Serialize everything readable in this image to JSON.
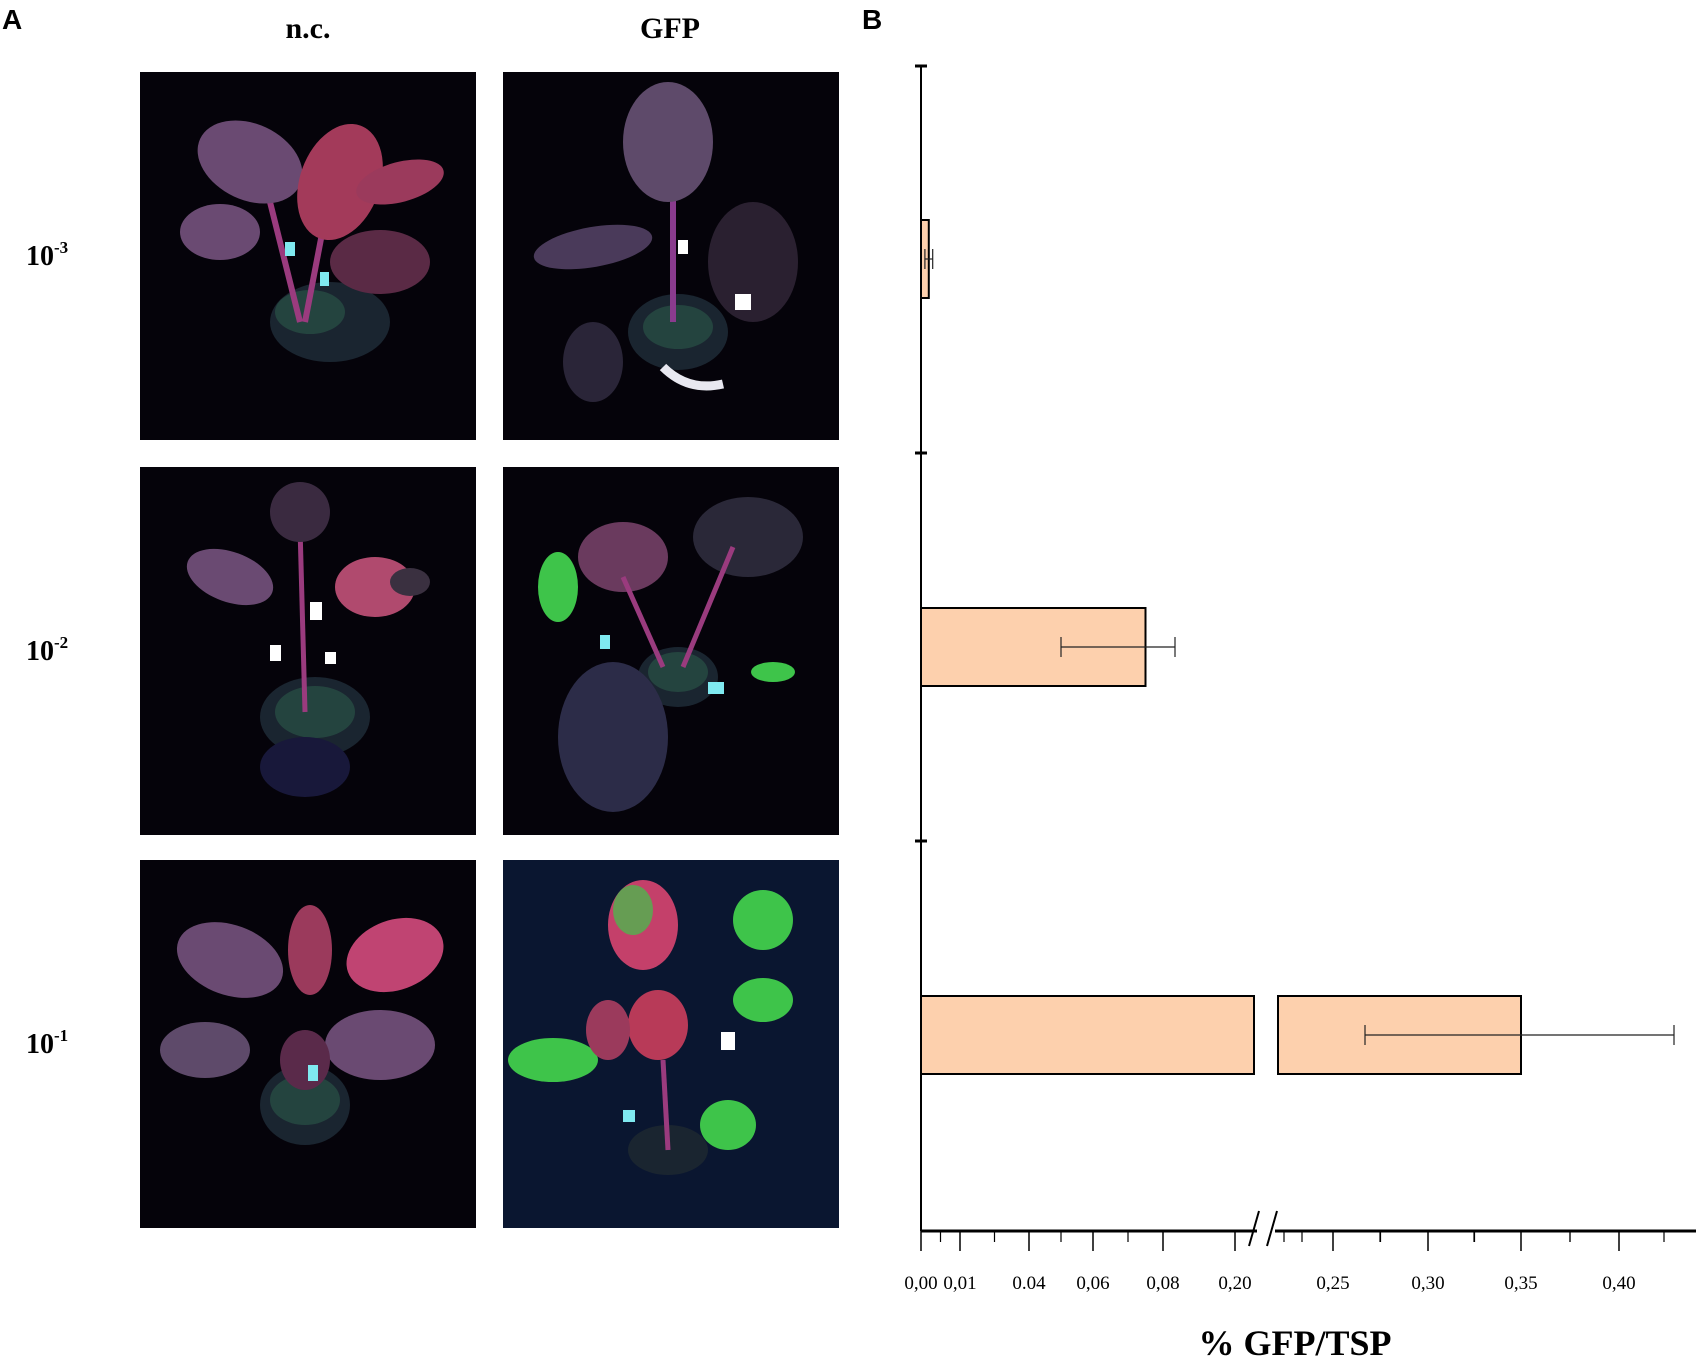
{
  "panel_a": {
    "letter": "A",
    "columns": [
      "n.c.",
      "GFP"
    ],
    "rows": [
      {
        "base": "10",
        "exp": "-3"
      },
      {
        "base": "10",
        "exp": "-2"
      },
      {
        "base": "10",
        "exp": "-1"
      }
    ]
  },
  "panel_b": {
    "letter": "B"
  },
  "chart_data": {
    "type": "bar",
    "orientation": "horizontal",
    "categories": [
      "10-3",
      "10-2",
      "10-1"
    ],
    "values": [
      0.002,
      0.075,
      0.35
    ],
    "error": [
      0.001,
      0.025,
      0.045
    ],
    "xlabel": "% GFP/TSP",
    "ylabel": "",
    "xticks": [
      "0,00",
      "0,01",
      "0.04",
      "0,06",
      "0,08",
      "0,20",
      "0,25",
      "0,30",
      "0,35",
      "0,40"
    ],
    "axis_break": "between 0,20 and 0,25",
    "bar_color": "#fdd0ad",
    "grid": false
  }
}
